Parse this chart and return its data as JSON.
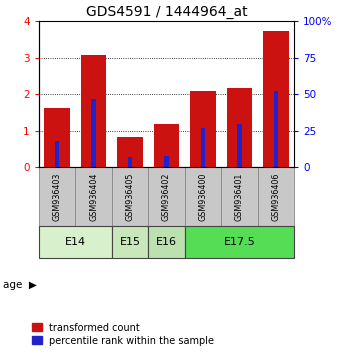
{
  "title": "GDS4591 / 1444964_at",
  "samples": [
    "GSM936403",
    "GSM936404",
    "GSM936405",
    "GSM936402",
    "GSM936400",
    "GSM936401",
    "GSM936406"
  ],
  "transformed_count": [
    1.62,
    3.08,
    0.82,
    1.2,
    2.08,
    2.18,
    3.72
  ],
  "percentile_rank_pct": [
    18,
    47,
    7,
    8,
    27,
    30,
    52
  ],
  "age_groups": [
    {
      "label": "E14",
      "indices": [
        0,
        1
      ],
      "color": "#d8f0cc"
    },
    {
      "label": "E15",
      "indices": [
        2
      ],
      "color": "#c8e8bc"
    },
    {
      "label": "E16",
      "indices": [
        3
      ],
      "color": "#bce0b0"
    },
    {
      "label": "E17.5",
      "indices": [
        4,
        5,
        6
      ],
      "color": "#55dd55"
    }
  ],
  "left_ylim": [
    0,
    4
  ],
  "right_ylim": [
    0,
    100
  ],
  "left_yticks": [
    0,
    1,
    2,
    3,
    4
  ],
  "right_yticks": [
    0,
    25,
    50,
    75,
    100
  ],
  "right_yticklabels": [
    "0",
    "25",
    "50",
    "75",
    "100%"
  ],
  "bar_color": "#cc1111",
  "percentile_color": "#2222cc",
  "bar_width": 0.7,
  "percentile_bar_width": 0.12,
  "background_color": "#ffffff",
  "sample_box_color": "#c8c8c8",
  "tick_fontsize": 7.5,
  "title_fontsize": 10
}
